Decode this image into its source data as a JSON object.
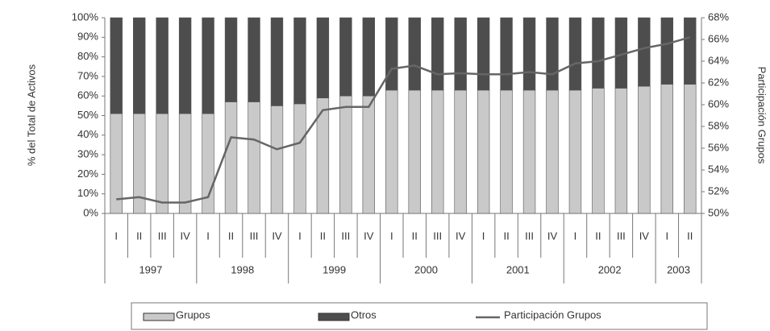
{
  "chart_data": {
    "type": "stacked_bar_line",
    "y_label": "% del Total de Activos",
    "y2_label": "Participación Grupos",
    "categories": [
      "I",
      "II",
      "III",
      "IV",
      "I",
      "II",
      "III",
      "IV",
      "I",
      "II",
      "III",
      "IV",
      "I",
      "II",
      "III",
      "IV",
      "I",
      "II",
      "III",
      "IV",
      "I",
      "II",
      "III",
      "IV",
      "I",
      "II"
    ],
    "x_groups": [
      "1997",
      "1998",
      "1999",
      "2000",
      "2001",
      "2002",
      "2003"
    ],
    "series": [
      {
        "name": "Grupos",
        "color": "#c9c9c9",
        "values": [
          51,
          51,
          51,
          51,
          51,
          57,
          57,
          55,
          56,
          59,
          60,
          60,
          63,
          63,
          63,
          63,
          63,
          63,
          63,
          63,
          63,
          64,
          64,
          65,
          66,
          66
        ]
      },
      {
        "name": "Otros",
        "color": "#4d4d4d",
        "values": [
          49,
          49,
          49,
          49,
          49,
          43,
          43,
          45,
          44,
          41,
          40,
          40,
          37,
          37,
          37,
          37,
          37,
          37,
          37,
          37,
          37,
          36,
          36,
          35,
          34,
          34
        ]
      },
      {
        "name": "Participación Grupos",
        "color": "#666666",
        "axis": "y2",
        "line": true,
        "values": [
          51.3,
          51.5,
          51.0,
          51.0,
          51.5,
          57.0,
          56.8,
          55.9,
          56.5,
          59.5,
          59.8,
          59.8,
          63.3,
          63.6,
          62.8,
          62.9,
          62.8,
          62.8,
          63.0,
          62.8,
          63.8,
          64.0,
          64.6,
          65.2,
          65.6,
          66.2
        ]
      }
    ],
    "ylim": [
      0,
      100
    ],
    "yticks": [
      {
        "value": 0,
        "label": "0%"
      },
      {
        "value": 10,
        "label": "10%"
      },
      {
        "value": 20,
        "label": "20%"
      },
      {
        "value": 30,
        "label": "30%"
      },
      {
        "value": 40,
        "label": "40%"
      },
      {
        "value": 50,
        "label": "50%"
      },
      {
        "value": 60,
        "label": "60%"
      },
      {
        "value": 70,
        "label": "70%"
      },
      {
        "value": 80,
        "label": "80%"
      },
      {
        "value": 90,
        "label": "90%"
      },
      {
        "value": 100,
        "label": "100%"
      }
    ],
    "y2lim": [
      50,
      68
    ],
    "y2ticks": [
      {
        "value": 50,
        "label": "50%"
      },
      {
        "value": 52,
        "label": "52%"
      },
      {
        "value": 54,
        "label": "54%"
      },
      {
        "value": 56,
        "label": "56%"
      },
      {
        "value": 58,
        "label": "58%"
      },
      {
        "value": 60,
        "label": "60%"
      },
      {
        "value": 62,
        "label": "62%"
      },
      {
        "value": 64,
        "label": "64%"
      },
      {
        "value": 66,
        "label": "66%"
      },
      {
        "value": 68,
        "label": "68%"
      }
    ],
    "legend": "bottom"
  }
}
